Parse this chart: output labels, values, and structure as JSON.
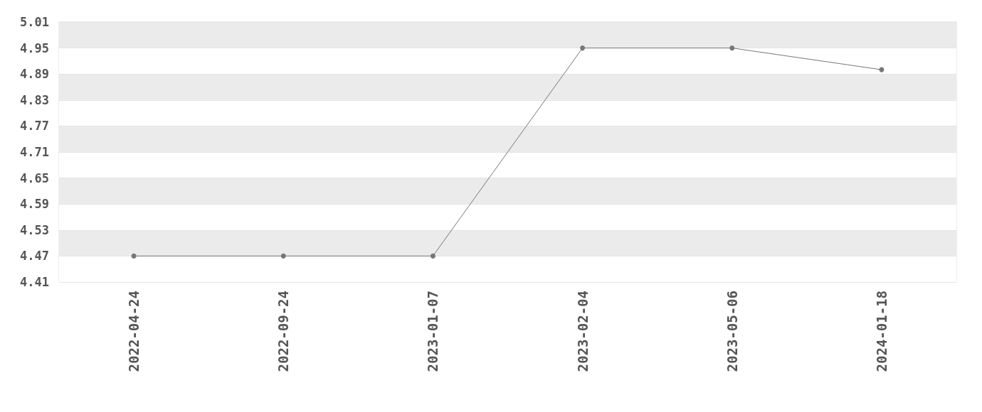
{
  "chart_data": {
    "type": "line",
    "categories": [
      "2022-04-24",
      "2022-09-24",
      "2023-01-07",
      "2023-02-04",
      "2023-05-06",
      "2024-01-18"
    ],
    "series": [
      {
        "color": "#777777",
        "values": [
          4.47,
          4.47,
          4.47,
          4.95,
          4.95,
          4.9
        ]
      }
    ],
    "ylim": [
      4.41,
      5.01
    ],
    "yticks": [
      4.41,
      4.47,
      4.53,
      4.59,
      4.65,
      4.71,
      4.77,
      4.83,
      4.89,
      4.95,
      5.01
    ],
    "grid": "y",
    "marker": "circle",
    "line_style": "solid"
  }
}
